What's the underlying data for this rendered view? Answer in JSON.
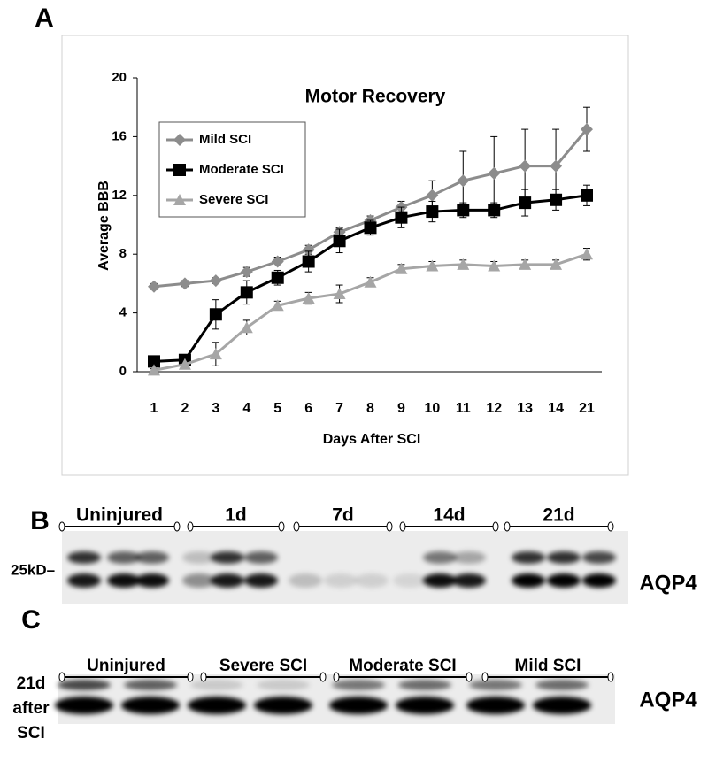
{
  "panel_labels": [
    "A",
    "B",
    "C"
  ],
  "chart_data": {
    "type": "line",
    "title": "Motor Recovery",
    "x_label": "Days After SCI",
    "y_label": "Average BBB",
    "categories": [
      "1",
      "2",
      "3",
      "4",
      "5",
      "6",
      "7",
      "8",
      "9",
      "10",
      "11",
      "12",
      "13",
      "14",
      "21"
    ],
    "ylim": [
      0,
      20
    ],
    "yticks": [
      0,
      4,
      8,
      12,
      16,
      20
    ],
    "series": [
      {
        "name": "Mild SCI",
        "color": "#8c8c8c",
        "marker": "diamond",
        "values": [
          5.8,
          6.0,
          6.2,
          6.8,
          7.5,
          8.3,
          9.5,
          10.3,
          11.2,
          12.0,
          13.0,
          13.5,
          14.0,
          14.0,
          16.5
        ],
        "errors": [
          0.2,
          0.2,
          0.2,
          0.3,
          0.3,
          0.3,
          0.3,
          0.3,
          0.4,
          1.0,
          2.0,
          2.5,
          2.5,
          2.5,
          1.5
        ]
      },
      {
        "name": "Moderate SCI",
        "color": "#000000",
        "marker": "square",
        "values": [
          0.7,
          0.8,
          3.9,
          5.4,
          6.4,
          7.5,
          8.9,
          9.8,
          10.5,
          10.9,
          11.0,
          11.0,
          11.5,
          11.7,
          12.0
        ],
        "errors": [
          0.3,
          0.3,
          1.0,
          0.8,
          0.5,
          0.7,
          0.8,
          0.5,
          0.7,
          0.7,
          0.5,
          0.5,
          0.9,
          0.7,
          0.7
        ]
      },
      {
        "name": "Severe SCI",
        "color": "#a6a6a6",
        "marker": "triangle",
        "values": [
          0.1,
          0.5,
          1.2,
          3.0,
          4.5,
          5.0,
          5.3,
          6.1,
          7.0,
          7.2,
          7.3,
          7.2,
          7.3,
          7.3,
          8.0
        ],
        "errors": [
          0.1,
          0.2,
          0.8,
          0.5,
          0.3,
          0.4,
          0.6,
          0.3,
          0.3,
          0.3,
          0.3,
          0.3,
          0.3,
          0.3,
          0.4
        ]
      }
    ]
  },
  "blot_b": {
    "lanes": [
      "Uninjured",
      "1d",
      "7d",
      "14d",
      "21d"
    ],
    "size_marker": "25kD–",
    "protein": "AQP4"
  },
  "blot_c": {
    "lanes": [
      "Uninjured",
      "Severe SCI",
      "Moderate SCI",
      "Mild SCI"
    ],
    "side_label": [
      "21d",
      "after",
      "SCI"
    ],
    "protein": "AQP4"
  }
}
